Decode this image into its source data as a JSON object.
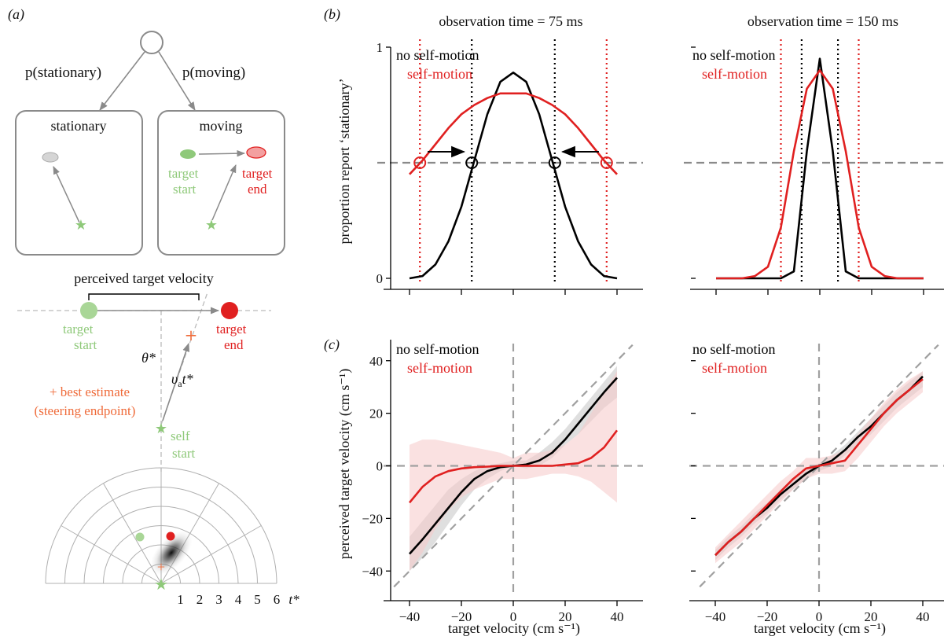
{
  "panel_a": {
    "label": "(a)",
    "p_stationary": "p(stationary)",
    "p_moving": "p(moving)",
    "box_stationary": "stationary",
    "box_moving": "moving",
    "target_start": [
      "target",
      "start"
    ],
    "target_end": [
      "target",
      "end"
    ],
    "perceived_velocity": "perceived target velocity",
    "theta": "θ*",
    "va_t": "υat*",
    "best_estimate": [
      "+ best estimate",
      "(steering endpoint)"
    ],
    "self_start": [
      "self",
      "start"
    ],
    "polar_ticks": [
      "1",
      "2",
      "3",
      "4",
      "5",
      "6"
    ],
    "polar_axis_label": "t*",
    "colors": {
      "green": "#8fc97a",
      "red": "#e02020",
      "orange": "#ef6b3a",
      "grey": "#8a8a8a"
    }
  },
  "panel_b": {
    "label": "(b)",
    "titles": [
      "observation time = 75 ms",
      "observation time = 150 ms"
    ],
    "ylabel": "proportion report ‘stationary’",
    "legend": [
      "no self-motion",
      "self-motion"
    ]
  },
  "panel_c": {
    "label": "(c)",
    "ylabel": "perceived target velocity (cm s⁻¹)",
    "xlabel": "target velocity (cm s⁻¹)",
    "legend": [
      "no self-motion",
      "self-motion"
    ]
  },
  "chart_data": [
    {
      "type": "line",
      "panel": "b",
      "title": "observation time = 75 ms",
      "ylabel": "proportion report ‘stationary’",
      "xlim": [
        -50,
        50
      ],
      "ylim": [
        0,
        1
      ],
      "yticks": [
        "0",
        "1"
      ],
      "x": [
        -40,
        -35,
        -30,
        -25,
        -20,
        -15,
        -10,
        -5,
        0,
        5,
        10,
        15,
        20,
        25,
        30,
        35,
        40
      ],
      "series": [
        {
          "name": "no self-motion",
          "color": "#000000",
          "values": [
            0.0,
            0.01,
            0.06,
            0.16,
            0.31,
            0.51,
            0.71,
            0.85,
            0.89,
            0.85,
            0.71,
            0.51,
            0.31,
            0.16,
            0.06,
            0.01,
            0.0
          ]
        },
        {
          "name": "self-motion",
          "color": "#e02020",
          "values": [
            0.45,
            0.51,
            0.58,
            0.65,
            0.71,
            0.75,
            0.78,
            0.8,
            0.8,
            0.8,
            0.78,
            0.75,
            0.71,
            0.65,
            0.58,
            0.51,
            0.45
          ]
        }
      ],
      "threshold": 0.5,
      "vlines_black": [
        -16,
        16
      ],
      "vlines_red": [
        -36,
        36
      ]
    },
    {
      "type": "line",
      "panel": "b",
      "title": "observation time = 150 ms",
      "xlim": [
        -50,
        50
      ],
      "ylim": [
        0,
        1
      ],
      "x": [
        -40,
        -35,
        -30,
        -25,
        -20,
        -15,
        -10,
        -5,
        0,
        5,
        10,
        15,
        20,
        25,
        30,
        35,
        40
      ],
      "series": [
        {
          "name": "no self-motion",
          "color": "#000000",
          "values": [
            0.0,
            0.0,
            0.0,
            0.0,
            0.0,
            0.0,
            0.03,
            0.55,
            0.95,
            0.55,
            0.03,
            0.0,
            0.0,
            0.0,
            0.0,
            0.0,
            0.0
          ]
        },
        {
          "name": "self-motion",
          "color": "#e02020",
          "values": [
            0.0,
            0.0,
            0.0,
            0.01,
            0.05,
            0.22,
            0.55,
            0.82,
            0.9,
            0.82,
            0.55,
            0.22,
            0.05,
            0.01,
            0.0,
            0.0,
            0.0
          ]
        }
      ],
      "threshold": 0.5,
      "vlines_black": [
        -7,
        7
      ],
      "vlines_red": [
        -15,
        15
      ]
    },
    {
      "type": "line",
      "panel": "c",
      "ylabel": "perceived target velocity (cm s⁻¹)",
      "xlabel": "target velocity (cm s⁻¹)",
      "xlim": [
        -50,
        50
      ],
      "ylim": [
        -48,
        48
      ],
      "xticks": [
        "−40",
        "−20",
        "0",
        "20",
        "40"
      ],
      "yticks": [
        "40",
        "20",
        "0",
        "−20",
        "−40"
      ],
      "x": [
        -40,
        -35,
        -30,
        -25,
        -20,
        -15,
        -10,
        -5,
        0,
        5,
        10,
        15,
        20,
        25,
        30,
        35,
        40
      ],
      "series": [
        {
          "name": "no self-motion",
          "color": "#000000",
          "values": [
            -33.5,
            -28,
            -22,
            -16,
            -10,
            -5,
            -2,
            -0.5,
            0,
            0.5,
            2,
            5,
            10,
            16,
            22,
            28,
            33.5
          ],
          "band_low": [
            -40,
            -35,
            -29,
            -22,
            -15,
            -9,
            -5,
            -2,
            0,
            -1,
            0,
            3,
            8,
            12,
            17,
            22,
            26
          ],
          "band_high": [
            -27,
            -21,
            -15,
            -9,
            -5,
            -2,
            0,
            1,
            2,
            2,
            5,
            9,
            14,
            20,
            26,
            32,
            38
          ]
        },
        {
          "name": "self-motion",
          "color": "#e02020",
          "values": [
            -14,
            -8,
            -4,
            -2,
            -1,
            -0.5,
            -0.3,
            0,
            0,
            0,
            0,
            0,
            0.5,
            1,
            3,
            7,
            13.5
          ],
          "band_low": [
            -40,
            -33,
            -24,
            -17,
            -12,
            -9,
            -7,
            -5,
            -5,
            -5,
            -4,
            -3,
            -3,
            -4,
            -6,
            -10,
            -14
          ],
          "band_high": [
            8,
            10,
            10,
            9,
            8,
            7,
            6,
            5,
            3,
            5,
            5,
            6,
            8,
            12,
            20,
            28,
            36
          ]
        }
      ]
    },
    {
      "type": "line",
      "panel": "c",
      "xlabel": "target velocity (cm s⁻¹)",
      "xlim": [
        -50,
        50
      ],
      "ylim": [
        -48,
        48
      ],
      "xticks": [
        "−40",
        "−20",
        "0",
        "20",
        "40"
      ],
      "x": [
        -40,
        -35,
        -30,
        -25,
        -20,
        -15,
        -10,
        -5,
        0,
        5,
        10,
        15,
        20,
        25,
        30,
        35,
        40
      ],
      "series": [
        {
          "name": "no self-motion",
          "color": "#000000",
          "values": [
            -34,
            -29,
            -25,
            -20,
            -16,
            -11,
            -7,
            -3,
            0,
            2,
            6,
            11,
            15,
            20,
            25,
            29,
            34
          ],
          "band_low": [
            -36,
            -31,
            -27,
            -22,
            -18,
            -13,
            -9,
            -5,
            -2,
            0,
            4,
            8,
            12,
            17,
            22,
            26,
            30
          ],
          "band_high": [
            -32,
            -27,
            -23,
            -18,
            -14,
            -9,
            -5,
            -1,
            1,
            4,
            8,
            13,
            18,
            23,
            28,
            32,
            36
          ]
        },
        {
          "name": "self-motion",
          "color": "#e02020",
          "values": [
            -34,
            -29,
            -25,
            -20,
            -15,
            -10,
            -5,
            -1,
            0,
            1,
            2,
            8,
            14,
            20,
            25,
            29,
            33
          ],
          "band_low": [
            -37,
            -33,
            -29,
            -24,
            -19,
            -14,
            -9,
            -5,
            -3,
            -3,
            -2,
            3,
            9,
            15,
            20,
            24,
            28
          ],
          "band_high": [
            -31,
            -26,
            -21,
            -16,
            -11,
            -6,
            -2,
            3,
            3,
            4,
            6,
            12,
            18,
            24,
            29,
            33,
            36
          ]
        }
      ]
    }
  ]
}
